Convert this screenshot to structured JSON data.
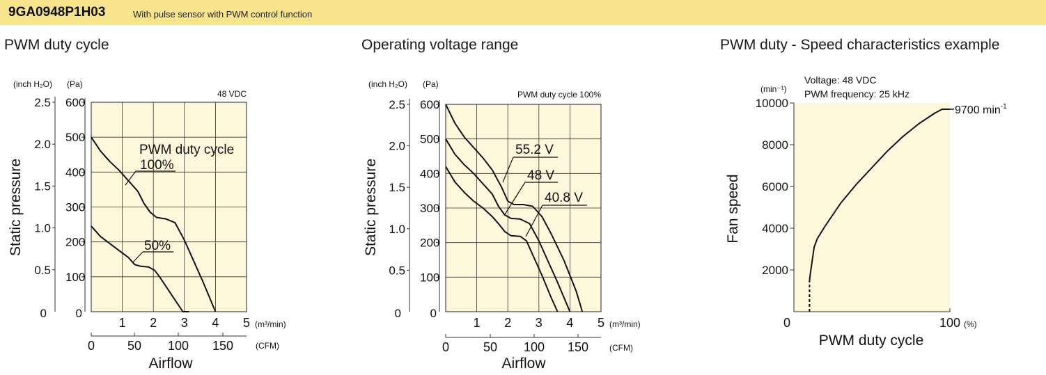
{
  "header": {
    "model": "9GA0948P1H03",
    "description": "With pulse sensor with PWM control function",
    "background_color": "#f7e48c"
  },
  "chart_data": [
    {
      "type": "line",
      "title": "PWM duty cycle",
      "condition": "48 VDC",
      "xlabel": "Airflow",
      "ylabel": "Static pressure",
      "x_primary_unit": "(m³/min)",
      "x_secondary_unit": "(CFM)",
      "y_primary_unit": "(Pa)",
      "y_secondary_unit": "(inch H₂O)",
      "xlim": [
        0,
        5
      ],
      "ylim": [
        0,
        600
      ],
      "x_ticks": [
        "1",
        "2",
        "3",
        "4",
        "5"
      ],
      "x2_ticks": [
        "0",
        "50",
        "100",
        "150"
      ],
      "y_ticks": [
        "100",
        "200",
        "300",
        "400",
        "500",
        "600"
      ],
      "y2_ticks": [
        "0.5",
        "1.0",
        "1.5",
        "2.0",
        "2.5"
      ],
      "origin_x_label": "0",
      "origin_y_labels": [
        "0",
        "0"
      ],
      "grid": true,
      "plot_background": "#fdf7dc",
      "series_label_header": "PWM duty cycle",
      "series": [
        {
          "name": "100%",
          "x": [
            0,
            0.3,
            0.6,
            0.9,
            1.2,
            1.5,
            1.7,
            1.9,
            2.1,
            2.4,
            2.7,
            3.0,
            3.3,
            3.6,
            4.0
          ],
          "y": [
            500,
            460,
            430,
            405,
            375,
            345,
            310,
            285,
            270,
            266,
            255,
            205,
            145,
            85,
            0
          ]
        },
        {
          "name": "50%",
          "x": [
            0,
            0.3,
            0.6,
            0.9,
            1.2,
            1.4,
            1.6,
            1.85,
            2.05,
            2.2,
            2.5,
            2.8,
            2.95,
            3.15
          ],
          "y": [
            245,
            215,
            195,
            175,
            155,
            135,
            130,
            128,
            118,
            100,
            60,
            20,
            0,
            0
          ]
        }
      ]
    },
    {
      "type": "line",
      "title": "Operating voltage range",
      "condition": "PWM duty cycle 100%",
      "xlabel": "Airflow",
      "ylabel": "Static pressure",
      "x_primary_unit": "(m³/min)",
      "x_secondary_unit": "(CFM)",
      "y_primary_unit": "(Pa)",
      "y_secondary_unit": "(inch H₂O)",
      "xlim": [
        0,
        5
      ],
      "ylim": [
        0,
        600
      ],
      "x_ticks": [
        "1",
        "2",
        "3",
        "4",
        "5"
      ],
      "x2_ticks": [
        "0",
        "50",
        "100",
        "150"
      ],
      "y_ticks": [
        "100",
        "200",
        "300",
        "400",
        "500",
        "600"
      ],
      "y2_ticks": [
        "0.5",
        "1.0",
        "1.5",
        "2.0",
        "2.5"
      ],
      "origin_x_label": "0",
      "origin_y_labels": [
        "0",
        "0"
      ],
      "grid": true,
      "plot_background": "#fdf7dc",
      "series": [
        {
          "name": "55.2 V",
          "x": [
            0,
            0.3,
            0.6,
            0.9,
            1.2,
            1.5,
            1.8,
            2.0,
            2.2,
            2.5,
            2.8,
            3.1,
            3.4,
            3.8,
            4.2,
            4.4
          ],
          "y": [
            600,
            545,
            505,
            475,
            445,
            410,
            360,
            320,
            310,
            310,
            305,
            275,
            225,
            150,
            60,
            0
          ]
        },
        {
          "name": "48 V",
          "x": [
            0,
            0.3,
            0.6,
            0.9,
            1.2,
            1.5,
            1.7,
            1.9,
            2.1,
            2.4,
            2.7,
            3.0,
            3.3,
            3.6,
            4.0
          ],
          "y": [
            500,
            455,
            425,
            400,
            370,
            340,
            305,
            280,
            270,
            268,
            255,
            205,
            145,
            85,
            0
          ]
        },
        {
          "name": "40.8 V",
          "x": [
            0,
            0.3,
            0.6,
            0.9,
            1.2,
            1.5,
            1.7,
            1.9,
            2.1,
            2.4,
            2.6,
            2.8,
            3.1,
            3.4,
            3.6
          ],
          "y": [
            420,
            375,
            345,
            320,
            300,
            275,
            255,
            232,
            220,
            218,
            205,
            165,
            105,
            40,
            0
          ]
        }
      ]
    },
    {
      "type": "line",
      "title": "PWM duty - Speed characteristics example",
      "conditions": [
        "Voltage: 48 VDC",
        "PWM frequency: 25 kHz"
      ],
      "xlabel": "PWM duty cycle",
      "ylabel": "Fan speed",
      "x_unit": "(%)",
      "y_unit": "(min⁻¹)",
      "xlim": [
        0,
        100
      ],
      "ylim": [
        0,
        10000
      ],
      "x_ticks": [
        "0",
        "100"
      ],
      "y_ticks": [
        "2000",
        "4000",
        "6000",
        "8000",
        "10000"
      ],
      "grid": false,
      "plot_background": "#fdf7dc",
      "end_label": "9700",
      "end_label_unit": "min",
      "end_label_unit_sup": "-1",
      "series": [
        {
          "name": "",
          "x": [
            10,
            10,
            10.5,
            13,
            15,
            20,
            30,
            40,
            50,
            60,
            70,
            80,
            90,
            95,
            100
          ],
          "y": [
            0,
            1500,
            1800,
            3100,
            3500,
            4100,
            5200,
            6100,
            6900,
            7700,
            8400,
            9000,
            9500,
            9700,
            9700
          ]
        }
      ]
    }
  ]
}
